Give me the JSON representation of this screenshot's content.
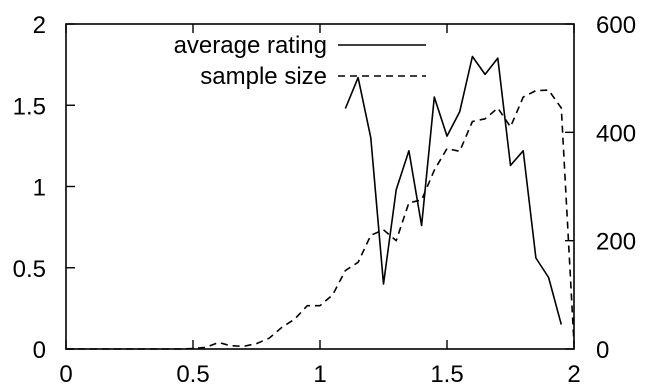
{
  "chart_data": {
    "type": "line",
    "title": "",
    "xlabel": "",
    "ylabel": "",
    "y2label": "",
    "xlim": [
      0,
      2
    ],
    "ylim": [
      0,
      2
    ],
    "y2lim": [
      0,
      600
    ],
    "x_ticks": [
      "0",
      "0.5",
      "1",
      "1.5",
      "2"
    ],
    "y_ticks": [
      "0",
      "0.5",
      "1",
      "1.5",
      "2"
    ],
    "y2_ticks": [
      "0",
      "200",
      "400",
      "600"
    ],
    "grid": false,
    "legend_position": "top-right",
    "series": [
      {
        "name": "average rating",
        "axis": "left",
        "style": "solid",
        "x": [
          1.1,
          1.15,
          1.2,
          1.25,
          1.3,
          1.35,
          1.4,
          1.45,
          1.5,
          1.55,
          1.6,
          1.65,
          1.7,
          1.75,
          1.8,
          1.85,
          1.9,
          1.95
        ],
        "y": [
          1.48,
          1.67,
          1.3,
          0.4,
          0.98,
          1.22,
          0.76,
          1.55,
          1.31,
          1.46,
          1.8,
          1.69,
          1.79,
          1.13,
          1.22,
          0.56,
          0.44,
          0.15
        ]
      },
      {
        "name": "sample size",
        "axis": "right",
        "style": "dashed",
        "x": [
          0.0,
          0.05,
          0.1,
          0.15,
          0.2,
          0.25,
          0.3,
          0.35,
          0.4,
          0.45,
          0.5,
          0.55,
          0.6,
          0.65,
          0.7,
          0.75,
          0.8,
          0.85,
          0.9,
          0.95,
          1.0,
          1.05,
          1.1,
          1.15,
          1.2,
          1.25,
          1.3,
          1.35,
          1.4,
          1.45,
          1.5,
          1.55,
          1.6,
          1.65,
          1.7,
          1.75,
          1.8,
          1.85,
          1.9,
          1.95,
          2.0
        ],
        "y": [
          0,
          0,
          0,
          0,
          0,
          0,
          0,
          0,
          0,
          0,
          1,
          3,
          12,
          6,
          5,
          10,
          20,
          40,
          55,
          80,
          80,
          100,
          145,
          160,
          210,
          220,
          200,
          270,
          275,
          330,
          370,
          365,
          420,
          425,
          445,
          410,
          465,
          477,
          478,
          445,
          10
        ]
      }
    ]
  }
}
